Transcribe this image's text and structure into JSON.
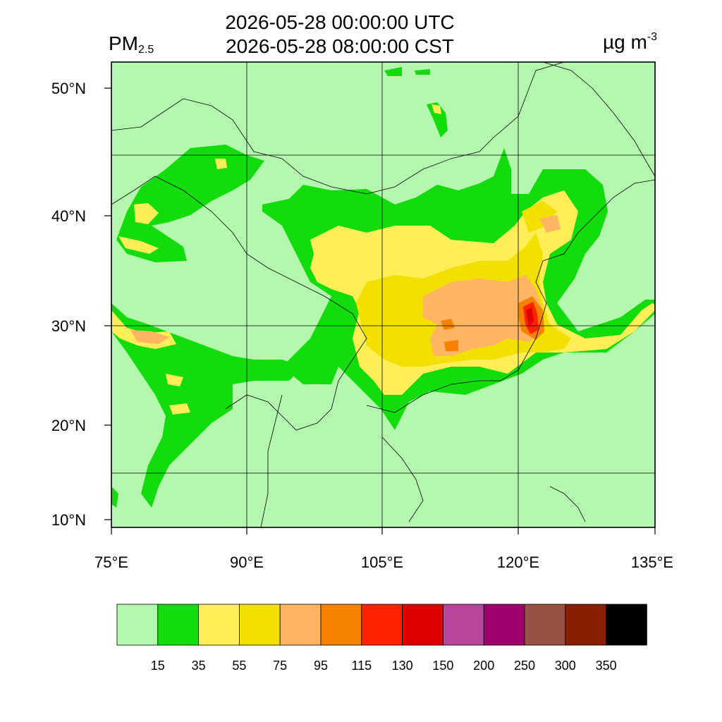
{
  "header": {
    "utc_time": "2026-05-28 00:00:00 UTC",
    "local_time": "2026-05-28 08:00:00 CST",
    "variable_main": "PM",
    "variable_sub": "2.5",
    "unit_main": "µg m",
    "unit_sup": "-3"
  },
  "map": {
    "lat_ticks": [
      "50°N",
      "40°N",
      "30°N",
      "20°N",
      "10°N"
    ],
    "lon_ticks": [
      "75°E",
      "90°E",
      "105°E",
      "120°E",
      "135°E"
    ],
    "background_color": "#b4f8b0"
  },
  "colorbar": {
    "colors": [
      "#b4f8b0",
      "#13dc0c",
      "#ffee58",
      "#f2e000",
      "#ffb562",
      "#f68200",
      "#ff2300",
      "#df0000",
      "#b8479b",
      "#a0006e",
      "#975242",
      "#8a1e00",
      "#000000"
    ],
    "labels": [
      "15",
      "35",
      "55",
      "75",
      "95",
      "115",
      "130",
      "150",
      "200",
      "250",
      "300",
      "350"
    ]
  }
}
